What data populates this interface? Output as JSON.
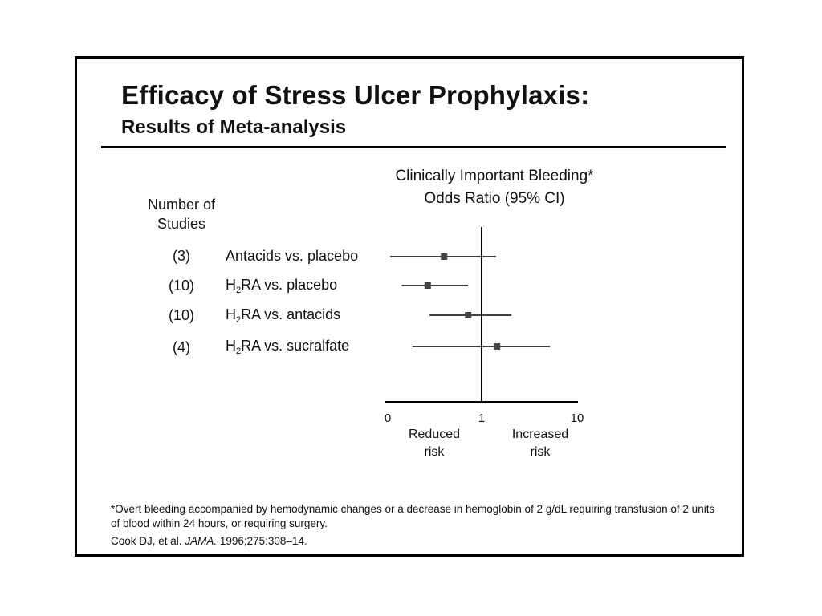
{
  "slide": {
    "title": "Efficacy of Stress Ulcer Prophylaxis:",
    "subtitle": "Results of Meta-analysis",
    "footnote": "*Overt bleeding accompanied by hemodynamic changes or a decrease in hemoglobin of 2 g/dL requiring transfusion of 2 units of blood within 24 hours, or requiring surgery.",
    "citation_authors": "Cook DJ, et al.",
    "citation_journal": "JAMA.",
    "citation_ref": "1996;275:308–14."
  },
  "chart_data": {
    "type": "forest",
    "title_line1": "Clinically Important Bleeding*",
    "title_line2": "Odds Ratio (95% CI)",
    "count_header_line1": "Number of",
    "count_header_line2": "Studies",
    "x_ticks": [
      "0",
      "1",
      "10"
    ],
    "reference_value": 1,
    "direction_labels": {
      "left": [
        "Reduced",
        "risk"
      ],
      "right": [
        "Increased",
        "risk"
      ]
    },
    "rows": [
      {
        "studies": "(3)",
        "prefix": "Antacids vs. placebo",
        "sub": "",
        "suffix": "",
        "estimate": 0.61,
        "ci_low": 0.05,
        "ci_high": 1.15
      },
      {
        "studies": "(10)",
        "prefix": "H",
        "sub": "2",
        "suffix": "RA vs. placebo",
        "estimate": 0.44,
        "ci_low": 0.17,
        "ci_high": 0.86
      },
      {
        "studies": "(10)",
        "prefix": "H",
        "sub": "2",
        "suffix": "RA vs. antacids",
        "estimate": 0.86,
        "ci_low": 0.46,
        "ci_high": 1.31
      },
      {
        "studies": "(4)",
        "prefix": "H",
        "sub": "2",
        "suffix": "RA vs. sucralfate",
        "estimate": 1.16,
        "ci_low": 0.28,
        "ci_high": 1.71
      }
    ]
  }
}
